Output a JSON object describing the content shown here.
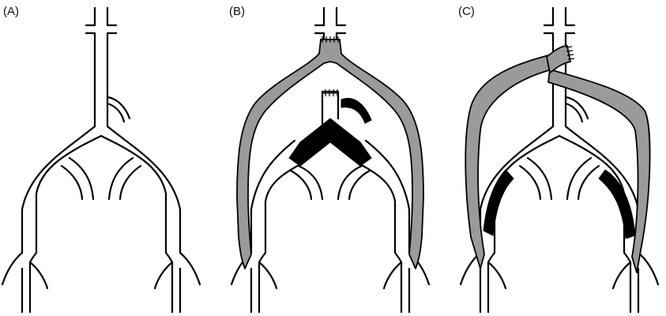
{
  "panels": [
    {
      "id": "A",
      "label": "(A)"
    },
    {
      "id": "B",
      "label": "(B)"
    },
    {
      "id": "C",
      "label": "(C)"
    }
  ],
  "colors": {
    "vessel_outline": "#000000",
    "graft_fill": "#9a9a9a",
    "occlusion_fill": "#000000",
    "background": "#ffffff"
  }
}
